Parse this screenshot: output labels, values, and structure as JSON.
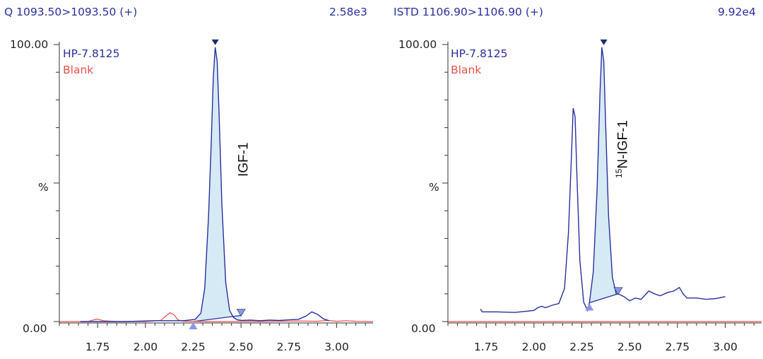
{
  "colors": {
    "sample": "#2b2f9e",
    "blank": "#e8504a",
    "fill": "#d6eaf5",
    "marker_dark": "#1f2a6b",
    "marker_light": "#8a96e0"
  },
  "chart_data": [
    {
      "type": "line",
      "title": "Q 1093.50>1093.50 (+)",
      "intensity": "2.58e3",
      "ylabel": "%",
      "ytick_labels": [
        "100.00",
        "0.00"
      ],
      "xtick_labels": [
        "1.75",
        "2.00",
        "2.25",
        "2.50",
        "2.75",
        "3.00"
      ],
      "xticks": [
        1.75,
        2.0,
        2.25,
        2.5,
        2.75,
        3.0
      ],
      "xlim": [
        1.55,
        3.19
      ],
      "ylim": [
        -3,
        100
      ],
      "grid": false,
      "legend": {
        "placement": "top-left",
        "entries": [
          "HP-7.8125",
          "Blank"
        ]
      },
      "annotation": {
        "base": "IGF-1",
        "sup": ""
      },
      "series": [
        {
          "name": "HP-7.8125",
          "x": [
            1.66,
            1.75,
            1.9,
            2.05,
            2.2,
            2.26,
            2.29,
            2.31,
            2.33,
            2.345,
            2.355,
            2.365,
            2.375,
            2.385,
            2.4,
            2.42,
            2.44,
            2.46,
            2.48,
            2.5,
            2.55,
            2.6,
            2.65,
            2.7,
            2.75,
            2.8,
            2.84,
            2.87,
            2.9,
            2.93,
            2.96
          ],
          "y": [
            0,
            0,
            0,
            0.3,
            0.3,
            0.8,
            3,
            12,
            38,
            66,
            88,
            99,
            94,
            75,
            42,
            14,
            4,
            1.5,
            0.6,
            0.4,
            0.5,
            0.3,
            0.5,
            0.4,
            0.6,
            0.8,
            2,
            3.5,
            2.6,
            1,
            0.3
          ]
        },
        {
          "name": "Blank",
          "x": [
            1.55,
            1.7,
            1.73,
            1.75,
            1.78,
            1.85,
            2.0,
            2.08,
            2.11,
            2.13,
            2.15,
            2.17,
            2.2,
            2.3,
            2.4,
            2.6,
            2.8,
            2.9,
            2.95,
            3.0,
            3.05,
            3.1,
            3.19
          ],
          "y": [
            0,
            0,
            0.6,
            0.9,
            0.3,
            0,
            0,
            0.4,
            2.2,
            3.2,
            2.4,
            0.6,
            0.1,
            0,
            0,
            0,
            0.2,
            0.1,
            0.4,
            0.1,
            0.3,
            0.1,
            0
          ]
        }
      ],
      "peak": {
        "start": 2.25,
        "end": 2.5,
        "apex": 2.365,
        "apex_y": 99,
        "end_y": 2.2
      }
    },
    {
      "type": "line",
      "title": "ISTD 1106.90>1106.90 (+)",
      "intensity": "9.92e4",
      "ylabel": "%",
      "ytick_labels": [
        "100.00",
        "0.00"
      ],
      "xtick_labels": [
        "1.75",
        "2.00",
        "2.25",
        "2.50",
        "2.75",
        "3.00"
      ],
      "xticks": [
        1.75,
        2.0,
        2.25,
        2.5,
        2.75,
        3.0
      ],
      "xlim": [
        1.55,
        3.19
      ],
      "ylim": [
        -3,
        100
      ],
      "grid": false,
      "legend": {
        "placement": "top-left",
        "entries": [
          "HP-7.8125",
          "Blank"
        ]
      },
      "annotation": {
        "base": "N-IGF-1",
        "sup": "15"
      },
      "series": [
        {
          "name": "HP-7.8125",
          "x": [
            1.72,
            1.73,
            1.8,
            1.9,
            2.0,
            2.02,
            2.04,
            2.06,
            2.1,
            2.13,
            2.16,
            2.18,
            2.195,
            2.205,
            2.215,
            2.225,
            2.24,
            2.26,
            2.28,
            2.29,
            2.31,
            2.33,
            2.345,
            2.355,
            2.365,
            2.375,
            2.39,
            2.41,
            2.43,
            2.44,
            2.47,
            2.5,
            2.53,
            2.56,
            2.6,
            2.63,
            2.66,
            2.7,
            2.73,
            2.76,
            2.78,
            2.8,
            2.85,
            2.9,
            2.95,
            3.0
          ],
          "y": [
            4.5,
            3.5,
            3.5,
            3.3,
            4,
            5,
            5.5,
            5,
            6,
            6.5,
            12,
            32,
            58,
            77,
            74,
            52,
            22,
            7,
            4,
            6.8,
            18,
            48,
            82,
            99,
            94,
            70,
            38,
            16,
            10,
            10,
            9,
            7.5,
            8.5,
            8,
            11,
            10,
            9.3,
            10.5,
            11,
            12.3,
            10,
            8.5,
            8.5,
            8,
            8.3,
            9
          ]
        },
        {
          "name": "Blank",
          "x": [
            1.55,
            2.0,
            2.5,
            3.0,
            3.19
          ],
          "y": [
            0,
            0,
            0,
            0,
            0
          ]
        }
      ],
      "peak": {
        "start": 2.29,
        "end": 2.44,
        "apex": 2.365,
        "apex_y": 99,
        "start_y": 6.8,
        "end_y": 10
      }
    }
  ]
}
